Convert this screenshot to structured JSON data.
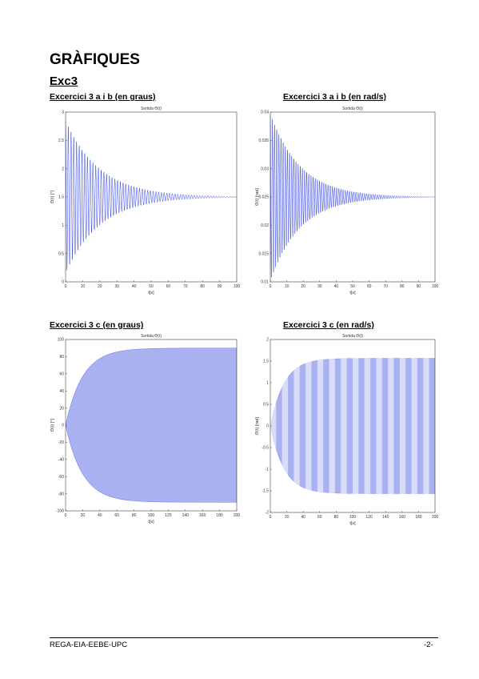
{
  "page": {
    "title": "GRÀFIQUES",
    "section": "Exc3"
  },
  "figures": {
    "fig1": {
      "caption": "Excercici 3 a i b  (en graus)"
    },
    "fig2": {
      "caption": "Excercici 3 a i b  (en rad/s)"
    },
    "fig3": {
      "caption": "Excercici 3 c (en graus)"
    },
    "fig4": {
      "caption": "Excercici 3 c  (en rad/s)"
    }
  },
  "footer": {
    "left": "REGA-EIA-EEBE-UPC",
    "right": "-2-"
  },
  "colors": {
    "signal": "#1c2fe6",
    "fill": "#9aa3ef"
  },
  "chart_data": [
    {
      "type": "line",
      "title": "Sortida Θ(t)",
      "xlabel": "t[s]",
      "ylabel": "Θ(t) [°]",
      "xlim": [
        0,
        100
      ],
      "ylim": [
        0,
        3
      ],
      "xticks": [
        0,
        10,
        20,
        30,
        40,
        50,
        60,
        70,
        80,
        90,
        100
      ],
      "yticks": [
        0,
        0.5,
        1,
        1.5,
        2,
        2.5,
        3
      ],
      "series": [
        {
          "envelope_center": 1.5,
          "initial_amplitude": 1.35,
          "decay_per_s": 0.05,
          "period_s": 1.6
        }
      ]
    },
    {
      "type": "line",
      "title": "Sortida Θ(t)",
      "xlabel": "t[s]",
      "ylabel": "Θ(t) [rad]",
      "xlim": [
        0,
        100
      ],
      "ylim": [
        0.01,
        0.04
      ],
      "xticks": [
        0,
        10,
        20,
        30,
        40,
        50,
        60,
        70,
        80,
        90,
        100
      ],
      "yticks": [
        0.01,
        0.015,
        0.02,
        0.025,
        0.03,
        0.035,
        0.04
      ],
      "series": [
        {
          "envelope_center": 0.025,
          "initial_amplitude": 0.0148,
          "decay_per_s": 0.055,
          "period_s": 1.3
        }
      ]
    },
    {
      "type": "area",
      "title": "Sortida Θ(t)",
      "xlabel": "t[s]",
      "ylabel": "Θ(t) [°]",
      "xlim": [
        0,
        200
      ],
      "ylim": [
        -100,
        100
      ],
      "xticks": [
        0,
        20,
        40,
        60,
        80,
        100,
        120,
        140,
        160,
        180,
        200
      ],
      "yticks": [
        -100,
        -80,
        -60,
        -40,
        -20,
        0,
        20,
        40,
        60,
        80,
        100
      ],
      "series": [
        {
          "saturation_amplitude": 90,
          "growth_per_s": 0.05
        }
      ]
    },
    {
      "type": "area",
      "title": "Sortida Θ(t)",
      "xlabel": "t[s]",
      "ylabel": "Θ(t) [rad]",
      "xlim": [
        0,
        200
      ],
      "ylim": [
        -2,
        2
      ],
      "xticks": [
        0,
        20,
        40,
        60,
        80,
        100,
        120,
        140,
        160,
        180,
        200
      ],
      "yticks": [
        -2,
        -1.5,
        -1,
        -0.5,
        0,
        0.5,
        1,
        1.5,
        2
      ],
      "series": [
        {
          "saturation_amplitude": 1.57,
          "growth_per_s": 0.06
        }
      ]
    }
  ]
}
